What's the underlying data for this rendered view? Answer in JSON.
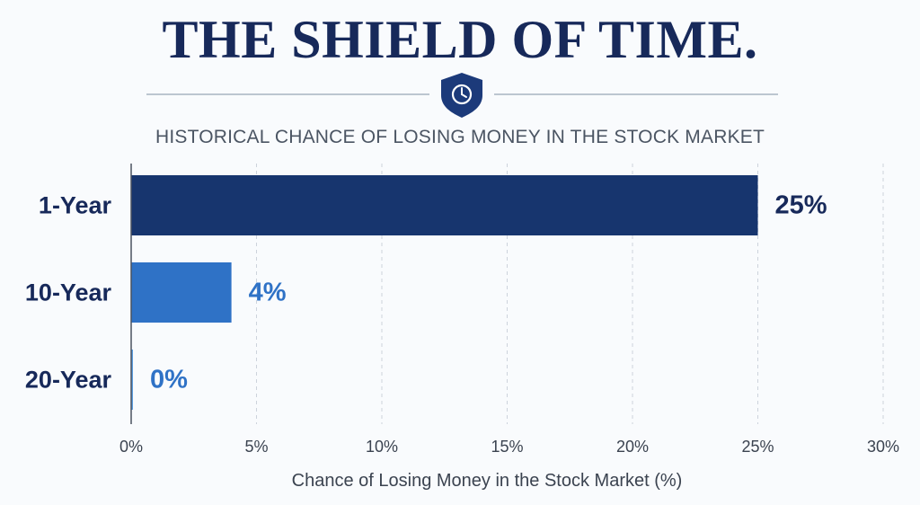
{
  "header": {
    "title": "THE SHIELD OF TIME.",
    "emblem_icon": "shield-clock-icon"
  },
  "colors": {
    "title": "#17295a",
    "bar_dark": "#17356e",
    "bar_medium": "#2f72c6",
    "bar_light": "#5b9ee0",
    "divider": "#a8b4c2",
    "axis_text": "#3b4350"
  },
  "chart_data": {
    "type": "bar",
    "orientation": "horizontal",
    "title": "HISTORICAL CHANCE OF LOSING MONEY IN THE STOCK MARKET",
    "xlabel": "Chance of Losing Money in the Stock Market (%)",
    "ylabel": "",
    "categories": [
      "1-Year",
      "10-Year",
      "20-Year"
    ],
    "values": [
      25,
      4,
      0
    ],
    "data_labels": [
      "25%",
      "4%",
      "0%"
    ],
    "xlim": [
      0,
      30
    ],
    "xticks": [
      0,
      5,
      10,
      15,
      20,
      25,
      30
    ],
    "xtick_labels": [
      "0%",
      "5%",
      "10%",
      "15%",
      "20%",
      "25%",
      "30%"
    ],
    "grid": true,
    "legend": "none"
  }
}
